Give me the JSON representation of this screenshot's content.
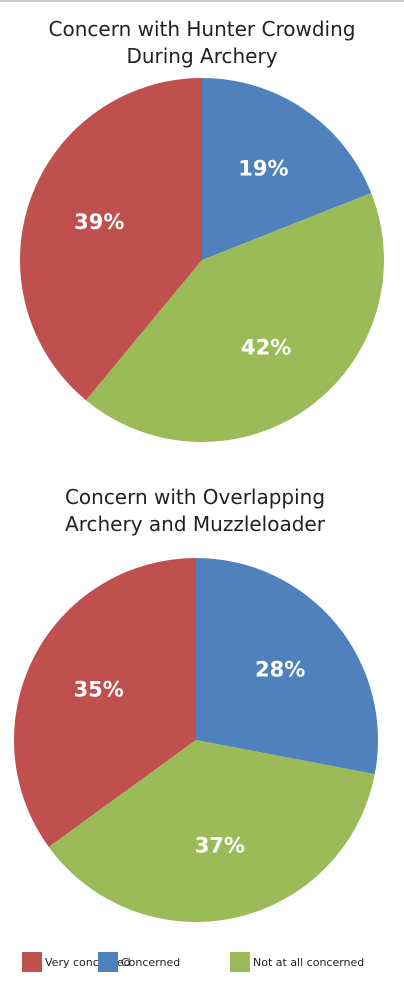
{
  "chart_data": [
    {
      "type": "pie",
      "title": "Concern with Hunter Crowding During Archery",
      "categories": [
        "Very concerned",
        "Concerned",
        "Not at all concerned"
      ],
      "values": [
        39,
        19,
        42
      ],
      "value_labels": [
        "39%",
        "19%",
        "42%"
      ],
      "colors": [
        "#c0504d",
        "#4f81bd",
        "#9bbb59"
      ]
    },
    {
      "type": "pie",
      "title": "Concern with Overlapping Archery and Muzzleloader",
      "categories": [
        "Very concerned",
        "Concerned",
        "Not at all concerned"
      ],
      "values": [
        35,
        28,
        37
      ],
      "value_labels": [
        "35%",
        "28%",
        "37%"
      ],
      "colors": [
        "#c0504d",
        "#4f81bd",
        "#9bbb59"
      ]
    }
  ]
}
